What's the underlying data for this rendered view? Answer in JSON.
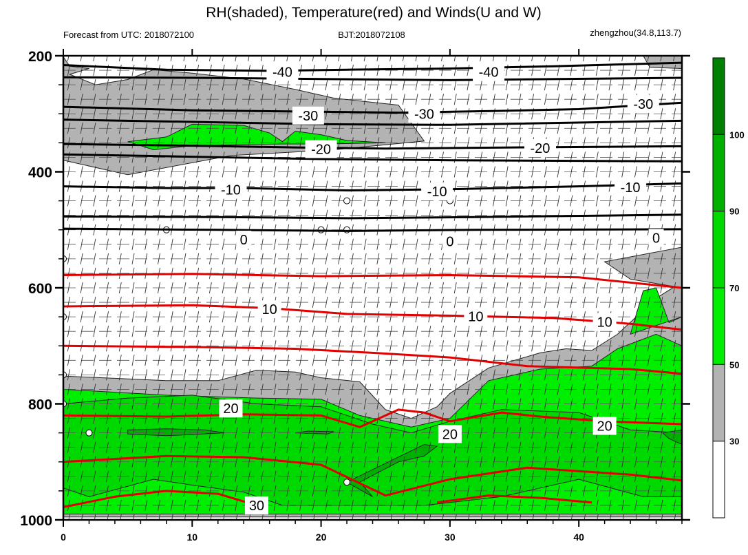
{
  "chart_data": {
    "type": "contour",
    "title": "RH(shaded), Temperature(red) and Winds(U and W)",
    "subtitle_left": "Forecast from UTC: 2018072100",
    "subtitle_center": "BJT:2018072108",
    "subtitle_right": "zhengzhou(34.8,113.7)",
    "x_axis": {
      "range": [
        0,
        48
      ],
      "ticks": [
        0,
        10,
        20,
        30,
        40
      ],
      "tick_labels": [
        "0",
        "10",
        "20",
        "30",
        "40"
      ]
    },
    "y_axis": {
      "range": [
        200,
        1000
      ],
      "inverted": true,
      "ticks": [
        200,
        400,
        600,
        800,
        1000
      ],
      "tick_labels": [
        "200",
        "400",
        "600",
        "800",
        "1000"
      ]
    },
    "colorbar": {
      "labels": [
        "30",
        "50",
        "70",
        "90",
        "100"
      ],
      "bins": [
        {
          "range": "<30",
          "color": "#ffffff"
        },
        {
          "range": "30-50",
          "color": "#b3b3b3"
        },
        {
          "range": "50-70",
          "color": "#00ee00"
        },
        {
          "range": "70-90",
          "color": "#00d900"
        },
        {
          "range": "90-100",
          "color": "#00b000"
        },
        {
          "range": ">100",
          "color": "#008000"
        }
      ]
    },
    "rh_shading": [
      {
        "bin": "30-50",
        "polygon": [
          [
            0,
            202
          ],
          [
            0.5,
            218
          ],
          [
            2,
            222
          ],
          [
            0.5,
            232
          ],
          [
            2.5,
            250
          ],
          [
            5,
            241
          ],
          [
            7,
            224
          ],
          [
            10,
            230
          ],
          [
            14,
            240
          ],
          [
            18,
            258
          ],
          [
            21,
            273
          ],
          [
            26,
            285
          ],
          [
            28,
            347
          ],
          [
            21,
            362
          ],
          [
            13,
            372
          ],
          [
            5,
            405
          ],
          [
            0,
            380
          ]
        ]
      },
      {
        "bin": "30-50",
        "polygon": [
          [
            45,
            200
          ],
          [
            48,
            200
          ],
          [
            48,
            222
          ],
          [
            45.5,
            220
          ]
        ]
      },
      {
        "bin": "30-50",
        "polygon": [
          [
            0,
            752
          ],
          [
            8,
            760
          ],
          [
            12,
            760
          ],
          [
            15,
            742
          ],
          [
            18,
            745
          ],
          [
            20,
            755
          ],
          [
            23,
            762
          ],
          [
            25,
            810
          ],
          [
            27,
            825
          ],
          [
            29,
            805
          ],
          [
            30,
            782
          ],
          [
            33,
            738
          ],
          [
            37,
            712
          ],
          [
            39,
            705
          ],
          [
            41,
            708
          ],
          [
            43,
            680
          ],
          [
            46,
            618
          ],
          [
            48,
            590
          ],
          [
            48,
            995
          ],
          [
            0,
            995
          ]
        ]
      },
      {
        "bin": "30-50",
        "polygon": [
          [
            42,
            555
          ],
          [
            48,
            530
          ],
          [
            48,
            600
          ],
          [
            44,
            585
          ]
        ]
      },
      {
        "bin": "50-70",
        "polygon": [
          [
            0,
            775
          ],
          [
            8,
            785
          ],
          [
            15,
            790
          ],
          [
            20,
            792
          ],
          [
            23,
            820
          ],
          [
            25,
            830
          ],
          [
            27,
            840
          ],
          [
            30,
            825
          ],
          [
            33,
            760
          ],
          [
            37,
            740
          ],
          [
            41,
            735
          ],
          [
            43,
            705
          ],
          [
            46,
            680
          ],
          [
            48,
            700
          ],
          [
            48,
            990
          ],
          [
            0,
            990
          ]
        ]
      },
      {
        "bin": "50-70",
        "polygon": [
          [
            44,
            680
          ],
          [
            45,
            605
          ],
          [
            46,
            600
          ],
          [
            47,
            660
          ],
          [
            48,
            650
          ]
        ]
      },
      {
        "bin": "50-70",
        "polygon": [
          [
            5,
            348
          ],
          [
            8,
            340
          ],
          [
            10,
            318
          ],
          [
            14,
            320
          ],
          [
            16,
            333
          ],
          [
            17,
            348
          ],
          [
            18,
            330
          ],
          [
            20,
            336
          ],
          [
            22,
            346
          ],
          [
            25,
            350
          ],
          [
            20,
            352
          ],
          [
            17,
            352
          ],
          [
            10,
            355
          ],
          [
            7,
            362
          ]
        ]
      },
      {
        "bin": "70-90",
        "polygon": [
          [
            0,
            800
          ],
          [
            5,
            790
          ],
          [
            10,
            785
          ],
          [
            15,
            800
          ],
          [
            20,
            805
          ],
          [
            24,
            835
          ],
          [
            27,
            850
          ],
          [
            30,
            830
          ],
          [
            34,
            810
          ],
          [
            40,
            815
          ],
          [
            44,
            845
          ],
          [
            48,
            850
          ],
          [
            48,
            960
          ],
          [
            45,
            960
          ],
          [
            40,
            930
          ],
          [
            34,
            960
          ],
          [
            28,
            975
          ],
          [
            17,
            975
          ],
          [
            14,
            952
          ],
          [
            10,
            940
          ],
          [
            7,
            930
          ],
          [
            2,
            960
          ],
          [
            0,
            945
          ]
        ]
      },
      {
        "bin": "90-100",
        "polygon": [
          [
            5,
            845
          ],
          [
            8,
            843
          ],
          [
            11,
            845
          ],
          [
            12.5,
            850
          ],
          [
            8,
            855
          ],
          [
            5,
            852
          ]
        ]
      },
      {
        "bin": "90-100",
        "polygon": [
          [
            19,
            847
          ],
          [
            21,
            848
          ],
          [
            20.5,
            852
          ],
          [
            18,
            850
          ]
        ]
      },
      {
        "bin": "90-100",
        "polygon": [
          [
            23,
            935
          ],
          [
            26,
            900
          ],
          [
            28,
            890
          ],
          [
            29,
            873
          ],
          [
            28,
            870
          ],
          [
            22,
            935
          ],
          [
            24,
            960
          ]
        ]
      },
      {
        "bin": "90-100",
        "polygon": [
          [
            46.5,
            850
          ],
          [
            48,
            845
          ],
          [
            48,
            870
          ],
          [
            47,
            860
          ]
        ]
      }
    ],
    "temperature_contours": [
      {
        "level": -40,
        "color": "#000000",
        "points": [
          [
            0,
            216
          ],
          [
            8,
            224
          ],
          [
            16,
            226
          ],
          [
            22,
            224
          ],
          [
            30,
            222
          ],
          [
            38,
            218
          ],
          [
            48,
            212
          ]
        ],
        "labels_at": [
          [
            17,
            228
          ],
          [
            33,
            228
          ]
        ]
      },
      {
        "level": -40,
        "color": "#000000",
        "points": [
          [
            0,
            237
          ],
          [
            10,
            238
          ],
          [
            20,
            240
          ],
          [
            30,
            242
          ],
          [
            48,
            238
          ]
        ],
        "labels_at": []
      },
      {
        "level": -30,
        "color": "#000000",
        "points": [
          [
            0,
            288
          ],
          [
            10,
            294
          ],
          [
            18,
            296
          ],
          [
            26,
            298
          ],
          [
            34,
            295
          ],
          [
            40,
            292
          ],
          [
            48,
            281
          ]
        ],
        "labels_at": [
          [
            19,
            303
          ],
          [
            28,
            300
          ],
          [
            45,
            283
          ]
        ]
      },
      {
        "level": -30,
        "color": "#000000",
        "points": [
          [
            0,
            310
          ],
          [
            10,
            314
          ],
          [
            20,
            318
          ],
          [
            30,
            319
          ],
          [
            48,
            312
          ]
        ],
        "labels_at": []
      },
      {
        "level": -20,
        "color": "#000000",
        "points": [
          [
            0,
            352
          ],
          [
            10,
            355
          ],
          [
            18,
            358
          ],
          [
            25,
            360
          ],
          [
            35,
            358
          ],
          [
            48,
            356
          ]
        ],
        "labels_at": [
          [
            20,
            361
          ],
          [
            37,
            359
          ]
        ]
      },
      {
        "level": -20,
        "color": "#000000",
        "points": [
          [
            0,
            370
          ],
          [
            10,
            374
          ],
          [
            20,
            378
          ],
          [
            30,
            380
          ],
          [
            48,
            382
          ]
        ],
        "labels_at": []
      },
      {
        "level": -10,
        "color": "#000000",
        "points": [
          [
            0,
            425
          ],
          [
            8,
            428
          ],
          [
            14,
            428
          ],
          [
            22,
            432
          ],
          [
            30,
            430
          ],
          [
            40,
            425
          ],
          [
            48,
            420
          ]
        ],
        "labels_at": [
          [
            13,
            431
          ],
          [
            29,
            434
          ],
          [
            44,
            427
          ]
        ]
      },
      {
        "level": 0,
        "color": "#000000",
        "points": [
          [
            0,
            477
          ],
          [
            12,
            478
          ],
          [
            22,
            480
          ],
          [
            32,
            478
          ],
          [
            48,
            474
          ]
        ],
        "labels_at": [
          [
            14,
            517
          ],
          [
            30,
            520
          ],
          [
            46,
            514
          ]
        ]
      },
      {
        "level": 0,
        "color": "#000000",
        "points": [
          [
            0,
            498
          ],
          [
            12,
            500
          ],
          [
            22,
            502
          ],
          [
            32,
            500
          ],
          [
            48,
            499
          ]
        ],
        "labels_at": []
      },
      {
        "level": 10,
        "color": "#e00000",
        "points": [
          [
            0,
            578
          ],
          [
            10,
            576
          ],
          [
            20,
            580
          ],
          [
            30,
            578
          ],
          [
            40,
            582
          ],
          [
            48,
            600
          ]
        ],
        "labels_at": []
      },
      {
        "level": 10,
        "color": "#e00000",
        "points": [
          [
            0,
            632
          ],
          [
            10,
            630
          ],
          [
            16,
            635
          ],
          [
            22,
            645
          ],
          [
            30,
            648
          ],
          [
            38,
            652
          ],
          [
            44,
            662
          ],
          [
            48,
            672
          ]
        ],
        "labels_at": [
          [
            16,
            637
          ],
          [
            32,
            649
          ],
          [
            42,
            659
          ]
        ]
      },
      {
        "level": 10,
        "color": "#e00000",
        "points": [
          [
            0,
            700
          ],
          [
            10,
            702
          ],
          [
            18,
            705
          ],
          [
            24,
            712
          ],
          [
            30,
            720
          ],
          [
            36,
            735
          ],
          [
            44,
            740
          ],
          [
            48,
            748
          ]
        ],
        "labels_at": []
      },
      {
        "level": 20,
        "color": "#e00000",
        "points": [
          [
            0,
            820
          ],
          [
            8,
            822
          ],
          [
            14,
            818
          ],
          [
            20,
            820
          ],
          [
            23,
            840
          ],
          [
            26,
            810
          ],
          [
            28,
            815
          ],
          [
            30,
            830
          ],
          [
            34,
            815
          ],
          [
            37,
            822
          ],
          [
            42,
            830
          ],
          [
            48,
            835
          ]
        ],
        "labels_at": [
          [
            13,
            808
          ],
          [
            30,
            852
          ],
          [
            42,
            838
          ]
        ]
      },
      {
        "level": 20,
        "color": "#e00000",
        "points": [
          [
            0,
            900
          ],
          [
            8,
            890
          ],
          [
            14,
            892
          ],
          [
            20,
            905
          ],
          [
            25,
            958
          ],
          [
            30,
            930
          ],
          [
            36,
            910
          ],
          [
            44,
            922
          ],
          [
            48,
            932
          ]
        ],
        "labels_at": []
      },
      {
        "level": 30,
        "color": "#e00000",
        "points": [
          [
            0,
            978
          ],
          [
            4,
            960
          ],
          [
            8,
            950
          ],
          [
            12,
            955
          ],
          [
            15,
            975
          ]
        ],
        "labels_at": [
          [
            15,
            975
          ]
        ]
      },
      {
        "level": 30,
        "color": "#e00000",
        "points": [
          [
            29,
            970
          ],
          [
            33,
            958
          ],
          [
            37,
            962
          ],
          [
            41,
            970
          ]
        ],
        "labels_at": []
      }
    ],
    "calm_markers": [
      [
        22,
        450
      ],
      [
        30,
        450
      ],
      [
        8,
        500
      ],
      [
        20,
        500
      ],
      [
        22,
        500
      ],
      [
        0,
        550
      ],
      [
        0,
        650
      ],
      [
        0,
        750
      ],
      [
        0,
        800
      ],
      [
        2,
        850
      ],
      [
        22,
        935
      ]
    ]
  }
}
